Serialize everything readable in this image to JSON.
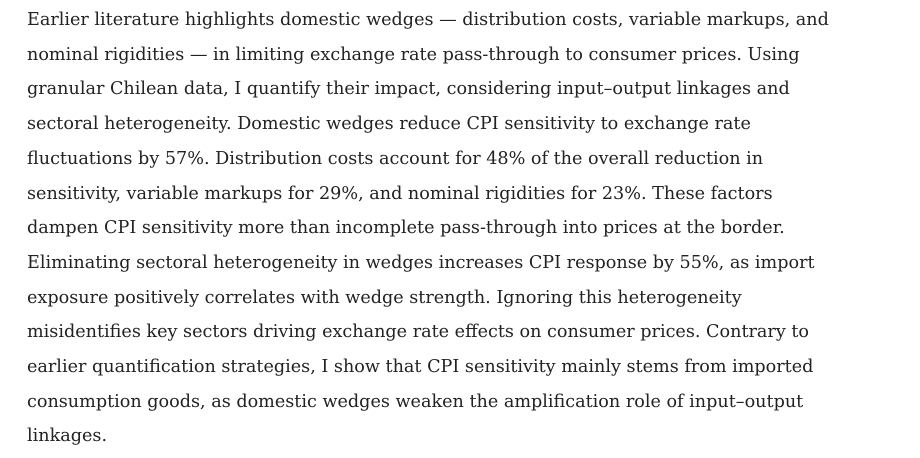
{
  "abstract": {
    "lines": [
      "Earlier literature highlights domestic wedges — distribution costs, variable markups, and",
      "nominal rigidities — in limiting exchange rate pass-through to consumer prices. Using",
      "granular Chilean data, I quantify their impact, considering input–output linkages and",
      "sectoral heterogeneity. Domestic wedges reduce CPI sensitivity to exchange rate",
      "fluctuations by 57%. Distribution costs account for 48% of the overall reduction in",
      "sensitivity, variable markups for 29%, and nominal rigidities for 23%. These factors",
      "dampen CPI sensitivity more than incomplete pass-through into prices at the border.",
      "Eliminating sectoral heterogeneity in wedges increases CPI response by 55%, as import",
      "exposure positively correlates with wedge strength. Ignoring this heterogeneity",
      "misidentifies key sectors driving exchange rate effects on consumer prices. Contrary to",
      "earlier quantification strategies, I show that CPI sensitivity mainly stems from imported",
      "consumption goods, as domestic wedges weaken the amplification role of input–output",
      "linkages."
    ]
  }
}
